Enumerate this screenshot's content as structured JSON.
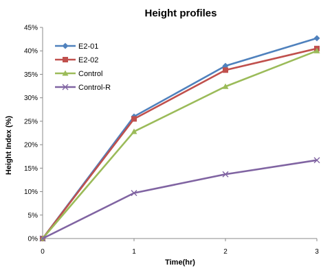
{
  "chart_data": {
    "type": "line",
    "title": "Height profiles",
    "xlabel": "Time(hr)",
    "ylabel": "Height Index (%)",
    "x": [
      0,
      1,
      2,
      3
    ],
    "x_ticks": [
      "0",
      "1",
      "2",
      "3"
    ],
    "xlim": [
      0,
      3
    ],
    "ylim": [
      0,
      45
    ],
    "y_ticks": [
      "0%",
      "5%",
      "10%",
      "15%",
      "20%",
      "25%",
      "30%",
      "35%",
      "40%",
      "45%"
    ],
    "grid": false,
    "legend_position": "top-left",
    "series": [
      {
        "name": "E2-01",
        "values": [
          0,
          26.0,
          36.8,
          42.7
        ],
        "color": "#4f81bd",
        "marker": "diamond"
      },
      {
        "name": "E2-02",
        "values": [
          0,
          25.5,
          35.9,
          40.5
        ],
        "color": "#c0504d",
        "marker": "square"
      },
      {
        "name": "Control",
        "values": [
          0,
          22.8,
          32.4,
          40.0
        ],
        "color": "#9bbb59",
        "marker": "triangle"
      },
      {
        "name": "Control-R",
        "values": [
          0,
          9.7,
          13.7,
          16.7
        ],
        "color": "#8064a2",
        "marker": "x"
      }
    ]
  }
}
